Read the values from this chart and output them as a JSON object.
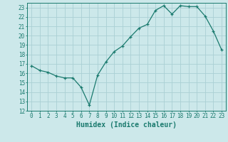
{
  "x": [
    0,
    1,
    2,
    3,
    4,
    5,
    6,
    7,
    8,
    9,
    10,
    11,
    12,
    13,
    14,
    15,
    16,
    17,
    18,
    19,
    20,
    21,
    22,
    23
  ],
  "y": [
    16.8,
    16.3,
    16.1,
    15.7,
    15.5,
    15.5,
    14.5,
    12.6,
    15.8,
    17.2,
    18.3,
    18.9,
    19.9,
    20.8,
    21.2,
    22.7,
    23.2,
    22.3,
    23.2,
    23.1,
    23.1,
    22.1,
    20.5,
    18.5
  ],
  "xlabel": "Humidex (Indice chaleur)",
  "ylim": [
    12,
    23.5
  ],
  "xlim": [
    -0.5,
    23.5
  ],
  "line_color": "#1a7a6e",
  "marker": "+",
  "bg_color": "#cce8ea",
  "grid_color": "#aad0d4",
  "axis_color": "#1a7a6e",
  "tick_fontsize": 5.5,
  "xlabel_fontsize": 7,
  "yticks": [
    12,
    13,
    14,
    15,
    16,
    17,
    18,
    19,
    20,
    21,
    22,
    23
  ],
  "xticks": [
    0,
    1,
    2,
    3,
    4,
    5,
    6,
    7,
    8,
    9,
    10,
    11,
    12,
    13,
    14,
    15,
    16,
    17,
    18,
    19,
    20,
    21,
    22,
    23
  ]
}
